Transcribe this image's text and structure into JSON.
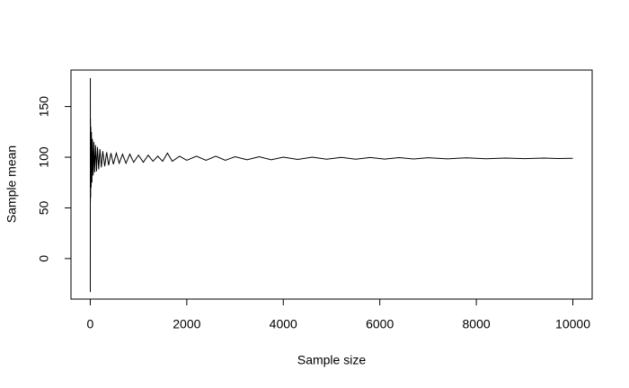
{
  "chart_data": {
    "type": "line",
    "xlabel": "Sample size",
    "ylabel": "Sample mean",
    "x": [
      1,
      2,
      3,
      5,
      8,
      12,
      18,
      25,
      35,
      45,
      60,
      75,
      90,
      110,
      130,
      150,
      175,
      200,
      230,
      260,
      300,
      340,
      380,
      430,
      480,
      540,
      600,
      670,
      740,
      820,
      900,
      1000,
      1100,
      1200,
      1300,
      1400,
      1500,
      1600,
      1700,
      1850,
      2000,
      2200,
      2400,
      2600,
      2800,
      3000,
      3250,
      3500,
      3750,
      4000,
      4300,
      4600,
      4900,
      5200,
      5500,
      5800,
      6100,
      6400,
      6700,
      7000,
      7400,
      7800,
      8200,
      8600,
      9000,
      9400,
      9700,
      10000
    ],
    "values": [
      -33,
      178,
      56,
      138,
      60,
      130,
      70,
      125,
      75,
      118,
      82,
      115,
      85,
      112,
      86,
      110,
      88,
      108,
      90,
      106,
      91,
      105,
      92,
      104,
      93,
      104,
      94,
      103,
      94,
      103,
      95,
      102,
      95,
      102,
      96,
      101,
      96,
      104,
      96,
      101,
      97,
      101,
      97,
      101,
      97,
      100.5,
      97.5,
      100.5,
      97.5,
      100,
      97.8,
      100,
      98,
      99.8,
      98,
      99.7,
      98.2,
      99.6,
      98.3,
      99.5,
      98.4,
      99.4,
      98.5,
      99.2,
      98.6,
      99.1,
      98.7,
      98.9
    ],
    "color": "#000000",
    "xlim": [
      -399,
      10400
    ],
    "xticks": [
      0,
      2000,
      4000,
      6000,
      8000,
      10000
    ],
    "ylim": [
      -40,
      186
    ],
    "yticks": [
      0,
      50,
      100,
      150
    ]
  }
}
